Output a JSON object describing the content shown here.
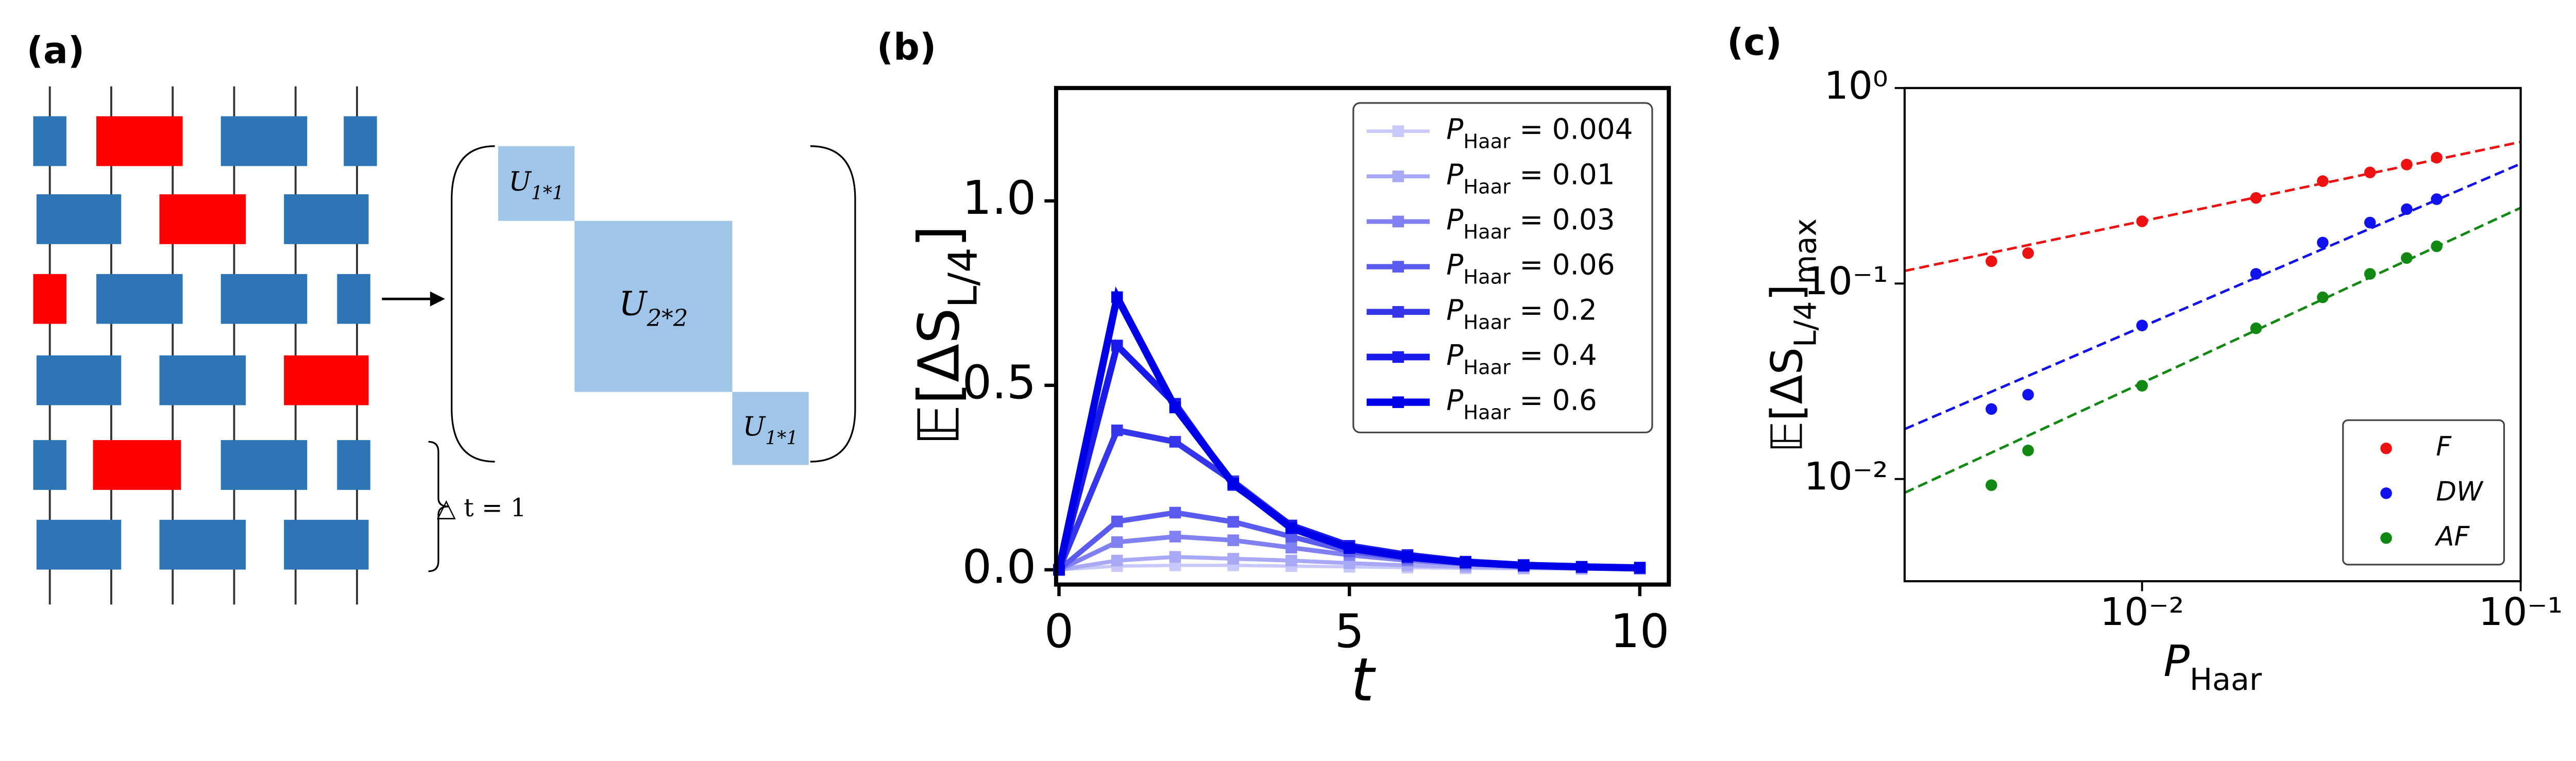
{
  "panel_a": {
    "label": "(a)",
    "matrix_labels": [
      [
        "U",
        "1*1"
      ],
      [
        "U",
        "2*2"
      ],
      [
        "U",
        "1*1"
      ]
    ],
    "step_label": "△ t = 1"
  },
  "chart_data": [
    {
      "type": "line",
      "label": "(b)",
      "xlabel": "t",
      "ylabel": [
        "𝔼[ΔS",
        "L/4",
        "]"
      ],
      "x": [
        0,
        1,
        2,
        3,
        4,
        5,
        6,
        7,
        8,
        9,
        10
      ],
      "xlim": [
        -0.05,
        10.5
      ],
      "ylim": [
        -0.04,
        1.306
      ],
      "xticks": [
        0,
        5,
        10
      ],
      "yticks": [
        {
          "value": 0,
          "label": "0.0"
        },
        0.5,
        {
          "value": 1,
          "label": "1.0"
        }
      ],
      "legend": "upper right",
      "series": [
        {
          "name": [
            "P",
            "Haar",
            " = 0.004"
          ],
          "color": "#c8c8fa",
          "values": [
            0,
            0.01,
            0.012,
            0.012,
            0.01,
            0.008,
            0.006,
            0.004,
            0.003,
            0.002,
            0.002
          ]
        },
        {
          "name": [
            "P",
            "Haar",
            " = 0.01"
          ],
          "color": "#a8a8f6",
          "values": [
            0,
            0.025,
            0.035,
            0.03,
            0.025,
            0.018,
            0.012,
            0.008,
            0.005,
            0.004,
            0.003
          ]
        },
        {
          "name": [
            "P",
            "Haar",
            " = 0.03"
          ],
          "color": "#8080f0",
          "values": [
            0,
            0.075,
            0.09,
            0.08,
            0.06,
            0.04,
            0.025,
            0.015,
            0.01,
            0.006,
            0.004
          ]
        },
        {
          "name": [
            "P",
            "Haar",
            " = 0.06"
          ],
          "color": "#5a5aee",
          "values": [
            0,
            0.131,
            0.155,
            0.13,
            0.09,
            0.05,
            0.03,
            0.018,
            0.01,
            0.007,
            0.005
          ]
        },
        {
          "name": [
            "P",
            "Haar",
            " = 0.2"
          ],
          "color": "#3535ec",
          "values": [
            0,
            0.378,
            0.347,
            0.24,
            0.12,
            0.06,
            0.035,
            0.02,
            0.012,
            0.008,
            0.005
          ]
        },
        {
          "name": [
            "P",
            "Haar",
            " = 0.4"
          ],
          "color": "#1a1aea",
          "values": [
            0,
            0.608,
            0.45,
            0.23,
            0.12,
            0.065,
            0.04,
            0.022,
            0.013,
            0.008,
            0.006
          ]
        },
        {
          "name": [
            "P",
            "Haar",
            " = 0.6"
          ],
          "color": "#0000e6",
          "values": [
            0,
            0.739,
            0.44,
            0.234,
            0.113,
            0.059,
            0.035,
            0.02,
            0.012,
            0.008,
            0.005
          ]
        }
      ]
    },
    {
      "type": "scatter",
      "label": "(c)",
      "log_x": true,
      "log_y": true,
      "xlabel": [
        "P",
        "Haar"
      ],
      "ylabel": [
        "𝔼[ΔS",
        "L/4",
        "]",
        "max"
      ],
      "x": [
        0.004,
        0.005,
        0.01,
        0.02,
        0.03,
        0.04,
        0.05,
        0.06
      ],
      "xlim": [
        0.00236,
        0.1
      ],
      "ylim": [
        0.003,
        1
      ],
      "xticks": [
        {
          "value": 0.01,
          "label": "10⁻²"
        },
        {
          "value": 0.1,
          "label": "10⁻¹"
        }
      ],
      "yticks": [
        {
          "value": 0.01,
          "label": "10⁻²"
        },
        {
          "value": 0.1,
          "label": "10⁻¹"
        },
        {
          "value": 1,
          "label": "10⁰"
        }
      ],
      "legend": "lower right",
      "series": [
        {
          "name": "F",
          "color": "#ee1111",
          "values": [
            0.13,
            0.143,
            0.208,
            0.274,
            0.334,
            0.37,
            0.406,
            0.44
          ]
        },
        {
          "name": "DW",
          "color": "#1111ee",
          "values": [
            0.0228,
            0.027,
            0.061,
            0.112,
            0.162,
            0.205,
            0.24,
            0.27
          ]
        },
        {
          "name": "AF",
          "color": "#118811",
          "values": [
            0.0093,
            0.014,
            0.03,
            0.059,
            0.085,
            0.112,
            0.135,
            0.155
          ]
        }
      ],
      "fits": [
        {
          "color": "#ee1111",
          "x": [
            0.00236,
            0.1
          ],
          "values": [
            0.116,
            0.53
          ]
        },
        {
          "color": "#1111ee",
          "x": [
            0.00236,
            0.1
          ],
          "values": [
            0.018,
            0.41
          ]
        },
        {
          "color": "#118811",
          "x": [
            0.00236,
            0.1
          ],
          "values": [
            0.0085,
            0.244
          ]
        }
      ]
    }
  ]
}
